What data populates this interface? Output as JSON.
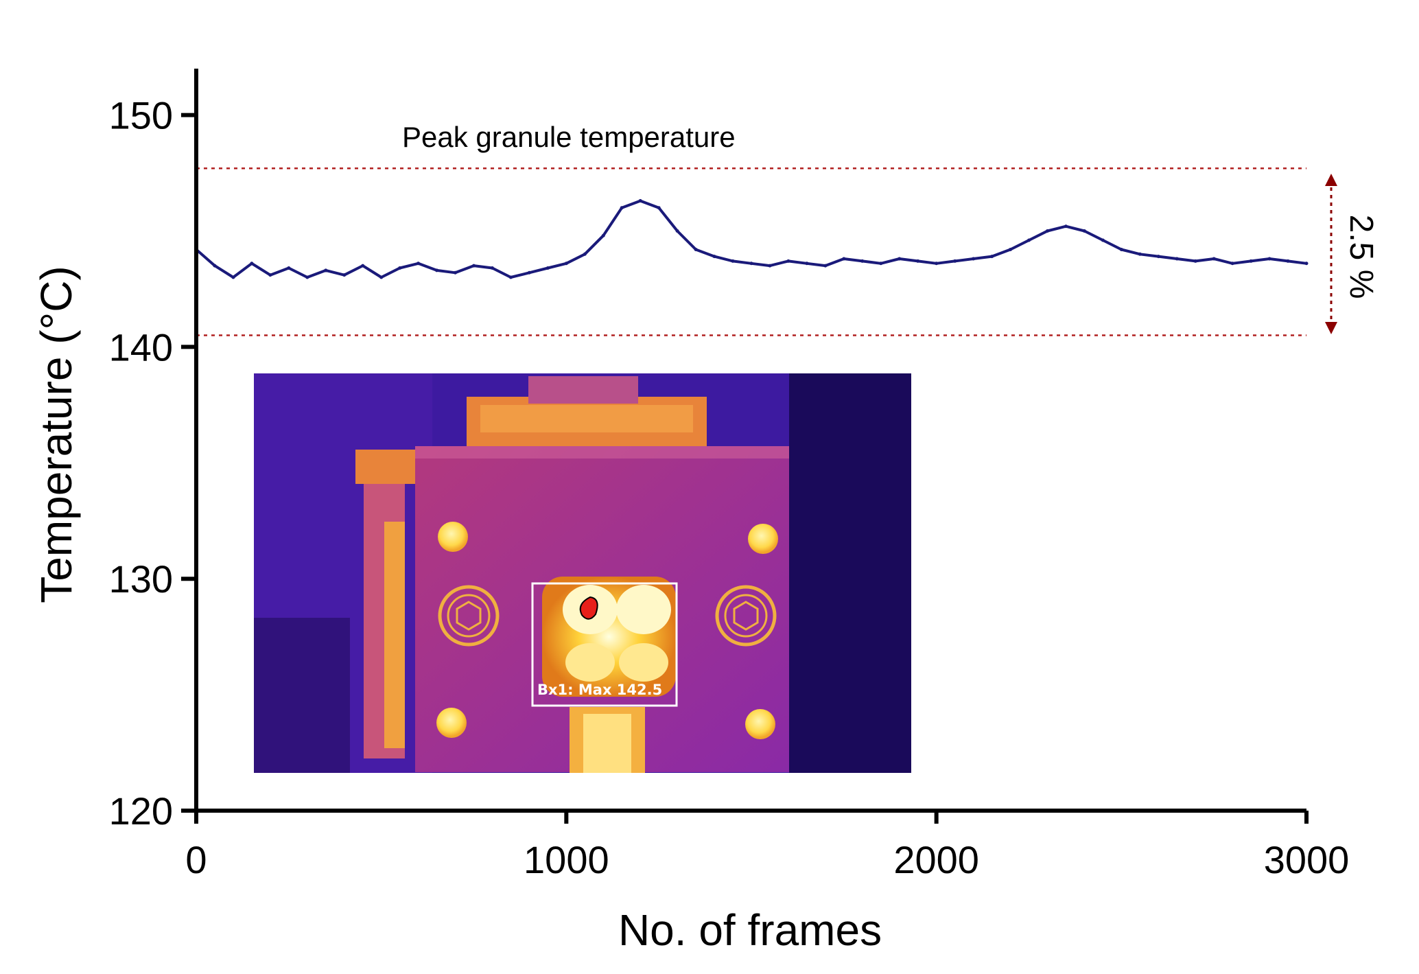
{
  "chart_data": {
    "type": "line",
    "xlabel": "No. of frames",
    "ylabel": "Temperature (°C)",
    "xlim": [
      0,
      3000
    ],
    "ylim": [
      120,
      152
    ],
    "xticks": [
      0,
      1000,
      2000,
      3000
    ],
    "yticks": [
      120,
      130,
      140,
      150
    ],
    "grid": false,
    "series": [
      {
        "color": "#1a1a7a",
        "x": [
          0,
          50,
          100,
          150,
          200,
          250,
          300,
          350,
          400,
          450,
          500,
          550,
          600,
          650,
          700,
          750,
          800,
          850,
          900,
          950,
          1000,
          1050,
          1100,
          1150,
          1200,
          1250,
          1300,
          1350,
          1400,
          1450,
          1500,
          1550,
          1600,
          1650,
          1700,
          1750,
          1800,
          1850,
          1900,
          1950,
          2000,
          2050,
          2100,
          2150,
          2200,
          2250,
          2300,
          2350,
          2400,
          2450,
          2500,
          2550,
          2600,
          2650,
          2700,
          2750,
          2800,
          2850,
          2900,
          2950,
          3000
        ],
        "y": [
          144.2,
          143.5,
          143.0,
          143.6,
          143.1,
          143.4,
          143.0,
          143.3,
          143.1,
          143.5,
          143.0,
          143.4,
          143.6,
          143.3,
          143.2,
          143.5,
          143.4,
          143.0,
          143.2,
          143.4,
          143.6,
          144.0,
          144.8,
          146.0,
          146.3,
          146.0,
          145.0,
          144.2,
          143.9,
          143.7,
          143.6,
          143.5,
          143.7,
          143.6,
          143.5,
          143.8,
          143.7,
          143.6,
          143.8,
          143.7,
          143.6,
          143.7,
          143.8,
          143.9,
          144.2,
          144.6,
          145.0,
          145.2,
          145.0,
          144.6,
          144.2,
          144.0,
          143.9,
          143.8,
          143.7,
          143.8,
          143.6,
          143.7,
          143.8,
          143.7,
          143.6
        ]
      }
    ],
    "reference_lines": [
      {
        "y": 147.7,
        "color": "#b22222",
        "style": "dotted"
      },
      {
        "y": 140.5,
        "color": "#b22222",
        "style": "dotted"
      }
    ],
    "annotations": {
      "peak_label": "Peak granule temperature",
      "range_label": "2.5 %",
      "thermal_box_label": "Bx1:  Max 142.5"
    }
  }
}
